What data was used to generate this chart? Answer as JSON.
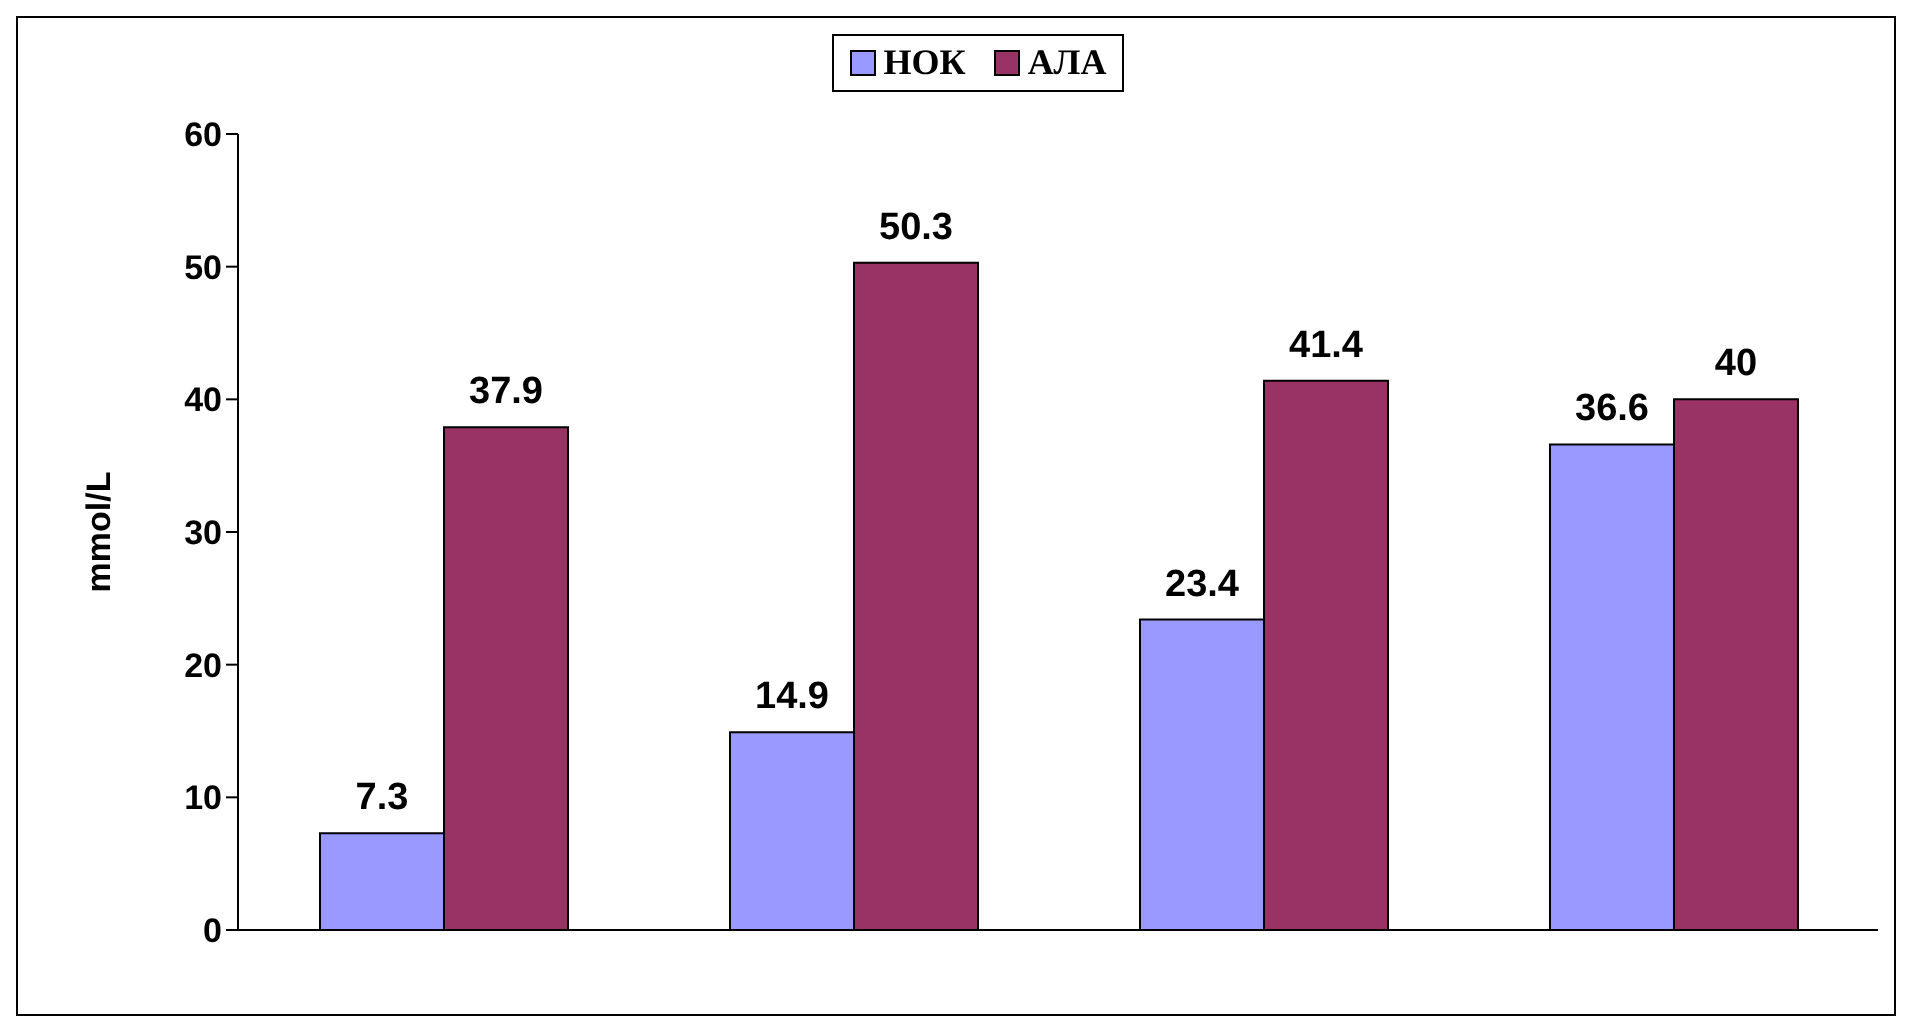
{
  "chart_data": {
    "type": "bar",
    "ylabel": "mmol/L",
    "categories": [
      null,
      null,
      null,
      null
    ],
    "series": [
      {
        "name": "НОК",
        "color": "#9999ff",
        "values": [
          7.3,
          14.9,
          23.4,
          36.6
        ]
      },
      {
        "name": "АЛА",
        "color": "#993366",
        "values": [
          37.9,
          50.3,
          41.4,
          40
        ]
      }
    ],
    "ylim": [
      0,
      60
    ],
    "yticks": [
      0,
      10,
      20,
      30,
      40,
      50,
      60
    ],
    "data_labels": true,
    "legend": "top"
  }
}
